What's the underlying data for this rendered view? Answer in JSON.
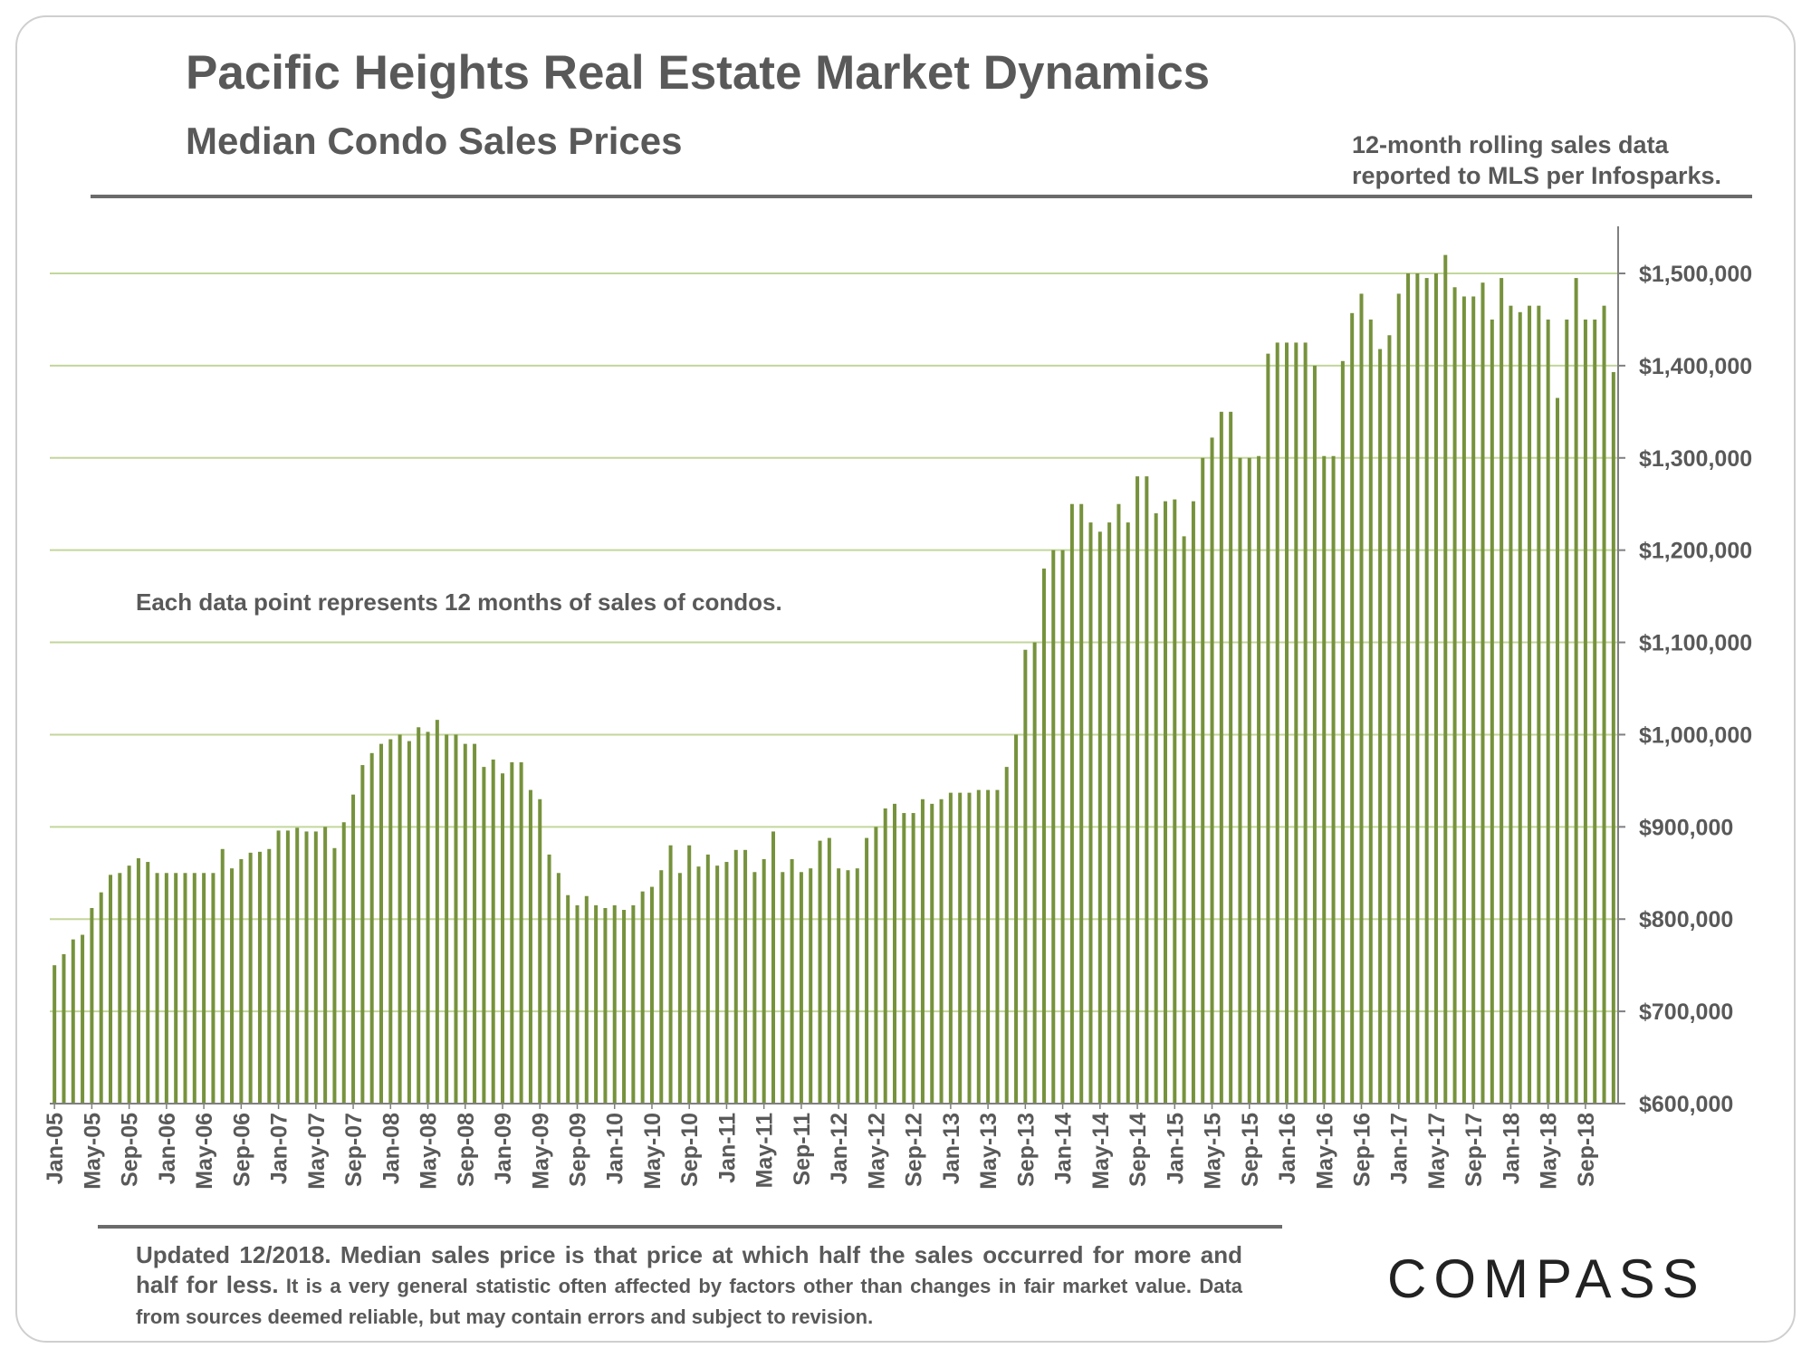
{
  "header": {
    "title": "Pacific Heights Real Estate Market Dynamics",
    "subtitle": "Median Condo Sales Prices",
    "source_line1": "12-month rolling sales data",
    "source_line2": "reported to MLS per Infosparks."
  },
  "annotation": "Each data point represents 12 months of sales of condos.",
  "footnote": {
    "part1": "Updated 12/2018. Median sales price is that price at which half the sales occurred for more and half for less.",
    "part2": " It is a very general statistic often affected by factors other than changes in fair market value. Data from sources deemed reliable, but may contain errors and subject to revision."
  },
  "logo": "COMPASS",
  "colors": {
    "bar": "#76923c",
    "grid": "#c3d69b",
    "text": "#595959"
  },
  "chart_data": {
    "type": "bar",
    "title": "Median Condo Sales Prices",
    "xlabel": "",
    "ylabel": "",
    "ylim": [
      600000,
      1550000
    ],
    "y_ticks": [
      600000,
      700000,
      800000,
      900000,
      1000000,
      1100000,
      1200000,
      1300000,
      1400000,
      1500000
    ],
    "y_tick_labels": [
      "$600,000",
      "$700,000",
      "$800,000",
      "$900,000",
      "$1,000,000",
      "$1,100,000",
      "$1,200,000",
      "$1,300,000",
      "$1,400,000",
      "$1,500,000"
    ],
    "grid": true,
    "x_tick_labels": [
      "Jan-05",
      "May-05",
      "Sep-05",
      "Jan-06",
      "May-06",
      "Sep-06",
      "Jan-07",
      "May-07",
      "Sep-07",
      "Jan-08",
      "May-08",
      "Sep-08",
      "Jan-09",
      "May-09",
      "Sep-09",
      "Jan-10",
      "May-10",
      "Sep-10",
      "Jan-11",
      "May-11",
      "Sep-11",
      "Jan-12",
      "May-12",
      "Sep-12",
      "Jan-13",
      "May-13",
      "Sep-13",
      "Jan-14",
      "May-14",
      "Sep-14",
      "Jan-15",
      "May-15",
      "Sep-15",
      "Jan-16",
      "May-16",
      "Sep-16",
      "Jan-17",
      "May-17",
      "Sep-17",
      "Jan-18",
      "May-18",
      "Sep-18"
    ],
    "x_tick_every": 4,
    "start_month": "Jan-05",
    "values": [
      750000,
      762000,
      778000,
      783000,
      812000,
      829000,
      848000,
      850000,
      858000,
      866000,
      862000,
      850000,
      850000,
      850000,
      850000,
      850000,
      850000,
      850000,
      876000,
      855000,
      865000,
      872000,
      873000,
      876000,
      896000,
      896000,
      899000,
      895000,
      895000,
      900000,
      877000,
      905000,
      935000,
      967000,
      980000,
      990000,
      995000,
      1000000,
      993000,
      1008000,
      1003000,
      1016000,
      1000000,
      1000000,
      990000,
      990000,
      965000,
      973000,
      958000,
      970000,
      970000,
      940000,
      930000,
      870000,
      850000,
      826000,
      815000,
      825000,
      815000,
      812000,
      815000,
      810000,
      815000,
      830000,
      835000,
      853000,
      880000,
      850000,
      880000,
      857000,
      870000,
      858000,
      862000,
      875000,
      875000,
      851000,
      865000,
      895000,
      851000,
      865000,
      851000,
      855000,
      885000,
      888000,
      855000,
      853000,
      855000,
      888000,
      900000,
      920000,
      925000,
      915000,
      915000,
      930000,
      925000,
      930000,
      937000,
      937000,
      937000,
      940000,
      940000,
      940000,
      965000,
      1000000,
      1092000,
      1100000,
      1180000,
      1200000,
      1200000,
      1250000,
      1250000,
      1230000,
      1220000,
      1230000,
      1250000,
      1230000,
      1280000,
      1280000,
      1240000,
      1253000,
      1255000,
      1215000,
      1253000,
      1300000,
      1322000,
      1350000,
      1350000,
      1300000,
      1300000,
      1302000,
      1413000,
      1425000,
      1425000,
      1425000,
      1425000,
      1400000,
      1302000,
      1302000,
      1405000,
      1457000,
      1478000,
      1450000,
      1418000,
      1433000,
      1478000,
      1500000,
      1500000,
      1495000,
      1500000,
      1520000,
      1485000,
      1475000,
      1475000,
      1490000,
      1450000,
      1495000,
      1465000,
      1458000,
      1465000,
      1465000,
      1450000,
      1365000,
      1450000,
      1495000,
      1450000,
      1450000,
      1465000,
      1393000
    ]
  }
}
